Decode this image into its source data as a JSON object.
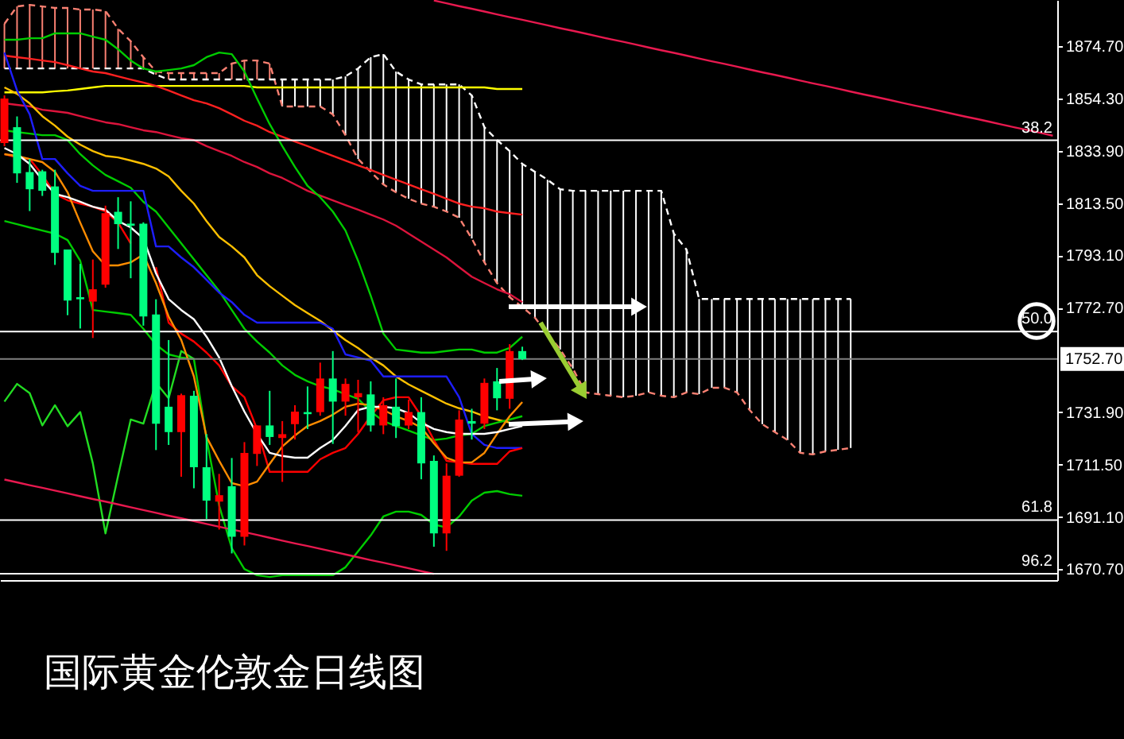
{
  "chart_data": {
    "type": "candlestick",
    "title": "国际黄金伦敦金日线图",
    "categories": [
      null,
      null,
      null,
      null,
      null,
      null,
      null,
      null,
      null,
      null,
      null,
      null,
      null,
      null,
      null,
      null,
      null,
      null,
      null,
      null,
      null,
      null,
      null,
      null,
      null,
      null,
      null,
      null,
      null,
      null,
      null,
      null,
      null,
      null,
      null,
      null,
      null,
      null,
      null,
      null,
      null,
      null,
      null,
      null,
      null,
      null,
      null,
      null,
      null,
      null,
      null,
      null,
      null,
      null,
      null,
      null,
      null,
      null,
      null,
      null,
      null,
      null,
      null,
      null,
      null,
      null,
      null,
      null,
      null,
      null,
      null,
      null,
      null,
      null,
      null,
      null,
      null,
      null,
      null,
      null,
      null,
      null,
      null,
      null
    ],
    "ohlc": [
      [
        1836.9,
        1855.5,
        1835.7,
        1854.3
      ],
      [
        1843.1,
        1847.3,
        1821.4,
        1825.1
      ],
      [
        1825.6,
        1830.7,
        1810.4,
        1818.9
      ],
      [
        1825.9,
        1826.5,
        1816.3,
        1818.3
      ],
      [
        1820.0,
        1826.5,
        1789.4,
        1794.1
      ],
      [
        1795.4,
        1795.4,
        1769.8,
        1775.5
      ],
      [
        1776.8,
        1789.8,
        1764.6,
        1776.0
      ],
      [
        1775.1,
        1791.5,
        1760.9,
        1779.9
      ],
      [
        1781.7,
        1812.5,
        1780.5,
        1809.6
      ],
      [
        1810.1,
        1815.8,
        1795.6,
        1805.3
      ],
      [
        1805.5,
        1814.2,
        1784.2,
        1804.7
      ],
      [
        1805.5,
        1806.0,
        1765.7,
        1769.3
      ],
      [
        1770.1,
        1776.0,
        1717.2,
        1727.5
      ],
      [
        1734.1,
        1760.1,
        1719.2,
        1724.2
      ],
      [
        1724.2,
        1739.2,
        1706.8,
        1738.6
      ],
      [
        1738.4,
        1740.3,
        1702.3,
        1710.5
      ],
      [
        1710.5,
        1723.4,
        1690.3,
        1697.5
      ],
      [
        1697.1,
        1707.9,
        1686.2,
        1699.6
      ],
      [
        1703.1,
        1714.1,
        1676.9,
        1683.4
      ],
      [
        1683.4,
        1720.3,
        1680.0,
        1716.1
      ],
      [
        1715.7,
        1726.8,
        1711.0,
        1726.8
      ],
      [
        1726.8,
        1740.3,
        1719.2,
        1722.3
      ],
      [
        1721.9,
        1728.5,
        1704.8,
        1723.4
      ],
      [
        1727.3,
        1734.7,
        1721.3,
        1732.2
      ],
      [
        1732.0,
        1742.0,
        1725.4,
        1731.2
      ],
      [
        1732.0,
        1751.3,
        1730.6,
        1745.1
      ],
      [
        1745.1,
        1755.8,
        1719.6,
        1736.1
      ],
      [
        1736.1,
        1745.1,
        1730.6,
        1743.0
      ],
      [
        1737.8,
        1744.6,
        1724.2,
        1739.4
      ],
      [
        1738.9,
        1744.0,
        1724.4,
        1726.8
      ],
      [
        1726.8,
        1737.8,
        1723.4,
        1734.7
      ],
      [
        1734.1,
        1745.1,
        1721.9,
        1726.5
      ],
      [
        1726.8,
        1736.8,
        1725.4,
        1732.0
      ],
      [
        1732.0,
        1737.8,
        1705.8,
        1712.0
      ],
      [
        1713.0,
        1715.1,
        1679.5,
        1684.7
      ],
      [
        1684.7,
        1712.0,
        1677.9,
        1707.2
      ],
      [
        1707.2,
        1732.7,
        1706.8,
        1729.1
      ],
      [
        1728.5,
        1733.3,
        1721.3,
        1727.5
      ],
      [
        1727.5,
        1745.1,
        1725.4,
        1743.4
      ],
      [
        1744.0,
        1749.2,
        1732.7,
        1737.4
      ],
      [
        1737.2,
        1758.5,
        1733.3,
        1755.8
      ],
      [
        1755.8,
        1757.5,
        1752.3,
        1752.7
      ],
      null,
      null,
      null,
      null,
      null,
      null,
      null,
      null,
      null,
      null,
      null,
      null,
      null,
      null,
      null,
      null,
      null,
      null,
      null,
      null,
      null,
      null,
      null,
      null,
      null,
      null,
      null,
      null,
      null,
      null,
      null,
      null,
      null,
      null,
      null,
      null,
      null,
      null,
      null,
      null,
      null,
      null
    ],
    "colors": [
      "#ff0000",
      "#00ff80",
      "#00ff80",
      "#00ff80",
      "#00ff80",
      "#00ff80",
      "#00ff80",
      "#ff0000",
      "#ff0000",
      "#00ff80",
      "#00ff80",
      "#00ff80",
      "#00ff80",
      "#00ff80",
      "#ff0000",
      "#00ff80",
      "#00ff80",
      "#ff0000",
      "#00ff80",
      "#ff0000",
      "#ff0000",
      "#00ff80",
      "#ff0000",
      "#ff0000",
      "#00ff80",
      "#ff0000",
      "#00ff80",
      "#ff0000",
      "#ff0000",
      "#00ff80",
      "#ff0000",
      "#00ff80",
      "#ff0000",
      "#00ff80",
      "#00ff80",
      "#ff0000",
      "#ff0000",
      "#00ff80",
      "#ff0000",
      "#00ff80",
      "#ff0000",
      "#00ff80",
      null,
      null,
      null,
      null,
      null,
      null,
      null,
      null,
      null,
      null,
      null,
      null,
      null,
      null,
      null,
      null,
      null,
      null,
      null,
      null,
      null,
      null,
      null,
      null,
      null,
      null,
      null,
      null,
      null,
      null,
      null,
      null,
      null,
      null,
      null,
      null,
      null,
      null,
      null,
      null,
      null,
      null
    ],
    "series": [
      {
        "type": "bar",
        "base": [
          1866.0,
          1866.0,
          1866.0,
          1866.0,
          1866.0,
          1866.0,
          1866.0,
          1866.0,
          1866.0,
          1866.0,
          1866.0,
          1866.0,
          1863.6,
          1861.7,
          1861.7,
          1861.7,
          1861.7,
          1861.7,
          1861.7,
          1861.7,
          1861.7,
          1861.7,
          1851.2,
          1851.2,
          1851.2,
          1851.2,
          1848.1,
          1840.0,
          1830.7,
          1825.7,
          1820.8,
          1817.7,
          1815.2,
          1813.3,
          1812.1,
          1810.2,
          1807.8,
          1799.7,
          1790.4,
          1782.3,
          1776.8,
          1773.0,
          1768.8,
          1762.6,
          1756.4,
          1749.0,
          1739.7,
          1739.0,
          1738.4,
          1737.8,
          1738.4,
          1739.7,
          1738.4,
          1737.8,
          1739.7,
          1739.0,
          1741.5,
          1741.5,
          1739.7,
          1732.8,
          1727.3,
          1724.2,
          1721.1,
          1716.1,
          1715.5,
          1716.7,
          1717.3,
          1718.0,
          null,
          null,
          null,
          null,
          null,
          null,
          null,
          null,
          null,
          null,
          null,
          null,
          null,
          null,
          null,
          null
        ],
        "values": [
          17.4,
          24.2,
          24.8,
          24.2,
          23.6,
          23.6,
          23.0,
          23.0,
          22.4,
          15.5,
          10.6,
          4.4,
          1.2,
          2.5,
          2.5,
          2.5,
          2.5,
          2.5,
          6.2,
          7.4,
          7.4,
          6.2,
          10.5,
          10.5,
          10.5,
          10.5,
          13.6,
          22.9,
          35.3,
          44.7,
          50.8,
          47.1,
          46.5,
          46.5,
          47.7,
          49.6,
          52.0,
          55.8,
          52.7,
          55.8,
          57.0,
          55.8,
          56.9,
          60.0,
          62.5,
          69.3,
          78.6,
          79.3,
          79.9,
          80.5,
          79.9,
          78.6,
          79.9,
          63.8,
          55.7,
          37.1,
          34.6,
          34.6,
          36.4,
          43.3,
          48.8,
          51.9,
          55.0,
          60.0,
          60.6,
          59.4,
          58.8,
          58.1,
          null,
          null,
          null,
          null,
          null,
          null,
          null,
          null,
          null,
          null,
          null,
          null,
          null,
          null,
          null,
          null
        ],
        "colors": [
          "#fa8072",
          "#fa8072",
          "#fa8072",
          "#fa8072",
          "#fa8072",
          "#fa8072",
          "#fa8072",
          "#fa8072",
          "#fa8072",
          "#fa8072",
          "#fa8072",
          "#fa8072",
          "#fa8072",
          "#fa8072",
          "#fa8072",
          "#fa8072",
          "#fa8072",
          "#fa8072",
          "#fa8072",
          "#fa8072",
          "#fa8072",
          "#fa8072",
          "#ffffff",
          "#ffffff",
          "#ffffff",
          "#ffffff",
          "#ffffff",
          "#ffffff",
          "#ffffff",
          "#ffffff",
          "#ffffff",
          "#ffffff",
          "#ffffff",
          "#ffffff",
          "#ffffff",
          "#ffffff",
          "#ffffff",
          "#ffffff",
          "#ffffff",
          "#ffffff",
          "#ffffff",
          "#ffffff",
          "#ffffff",
          "#ffffff",
          "#ffffff",
          "#ffffff",
          "#ffffff",
          "#ffffff",
          "#ffffff",
          "#ffffff",
          "#ffffff",
          "#ffffff",
          "#ffffff",
          "#ffffff",
          "#ffffff",
          "#ffffff",
          "#ffffff",
          "#ffffff",
          "#ffffff",
          "#ffffff",
          "#ffffff",
          "#ffffff",
          "#ffffff",
          "#ffffff",
          "#ffffff",
          "#ffffff",
          "#ffffff",
          "#ffffff",
          null,
          null,
          null,
          null,
          null,
          null,
          null,
          null,
          null,
          null,
          null,
          null,
          null,
          null,
          null,
          null
        ]
      },
      {
        "type": "line",
        "color": "#fa8072",
        "line_style": "dashed",
        "values": [
          1883.4,
          1890.2,
          1890.8,
          1890.2,
          1889.6,
          1889.6,
          1889.0,
          1889.0,
          1888.4,
          1881.5,
          1876.6,
          1870.4,
          1864.8,
          1864.2,
          1864.2,
          1864.2,
          1864.2,
          1864.2,
          1867.9,
          1869.1,
          1869.1,
          1867.9,
          1851.2,
          1851.2,
          1851.2,
          1851.2,
          1848.1,
          1840.0,
          1830.7,
          1825.7,
          1820.8,
          1817.7,
          1815.2,
          1813.3,
          1812.1,
          1810.2,
          1807.8,
          1799.7,
          1790.4,
          1782.3,
          1776.8,
          1773.0,
          1768.8,
          1762.6,
          1756.4,
          1749.0,
          1739.7,
          1739.0,
          1738.4,
          1737.8,
          1738.4,
          1739.7,
          1738.4,
          1737.8,
          1739.7,
          1739.0,
          1741.5,
          1741.5,
          1739.7,
          1732.8,
          1727.3,
          1724.2,
          1721.1,
          1716.1,
          1715.5,
          1716.7,
          1717.3,
          1718.0,
          null,
          null,
          null,
          null,
          null,
          null,
          null,
          null,
          null,
          null,
          null,
          null,
          null,
          null,
          null,
          null
        ]
      },
      {
        "type": "line",
        "color": "#ffffff",
        "line_style": "dashed",
        "values": [
          1866.0,
          1866.0,
          1866.0,
          1866.0,
          1866.0,
          1866.0,
          1866.0,
          1866.0,
          1866.0,
          1866.0,
          1866.0,
          1866.0,
          1863.6,
          1861.7,
          1861.7,
          1861.7,
          1861.7,
          1861.7,
          1861.7,
          1861.7,
          1861.7,
          1861.7,
          1861.7,
          1861.7,
          1861.7,
          1861.7,
          1861.7,
          1862.9,
          1866.0,
          1870.4,
          1871.6,
          1864.8,
          1861.7,
          1859.8,
          1859.8,
          1859.8,
          1859.8,
          1855.5,
          1843.1,
          1838.1,
          1833.8,
          1828.8,
          1825.7,
          1822.6,
          1818.9,
          1818.3,
          1818.3,
          1818.3,
          1818.3,
          1818.3,
          1818.3,
          1818.3,
          1818.3,
          1801.6,
          1795.4,
          1776.1,
          1776.1,
          1776.1,
          1776.1,
          1776.1,
          1776.1,
          1776.1,
          1776.1,
          1776.1,
          1776.1,
          1776.1,
          1776.1,
          1776.1,
          null,
          null,
          null,
          null,
          null,
          null,
          null,
          null,
          null,
          null,
          null,
          null,
          null,
          null,
          null,
          null
        ]
      },
      {
        "type": "line",
        "color": "#ffff00",
        "values": [
          1856.7,
          1856.7,
          1856.7,
          1856.7,
          1857.1,
          1857.4,
          1858.0,
          1858.6,
          1859.2,
          1859.2,
          1859.2,
          1859.2,
          1859.2,
          1859.2,
          1859.2,
          1859.2,
          1859.2,
          1859.2,
          1859.2,
          1859.2,
          1858.6,
          1858.6,
          1858.6,
          1858.6,
          1858.6,
          1858.6,
          1858.6,
          1858.6,
          1858.6,
          1858.6,
          1858.6,
          1858.6,
          1858.6,
          1858.6,
          1858.6,
          1858.6,
          1858.6,
          1858.6,
          1858.6,
          1858.0,
          1858.0,
          1858.0,
          null,
          null,
          null,
          null,
          null,
          null,
          null,
          null,
          null,
          null,
          null,
          null,
          null,
          null,
          null,
          null,
          null,
          null,
          null,
          null,
          null,
          null,
          null,
          null,
          null,
          null,
          null,
          null,
          null,
          null,
          null,
          null,
          null,
          null,
          null,
          null,
          null,
          null,
          null,
          null,
          null,
          null
        ]
      },
      {
        "type": "line",
        "color": "#ff2020",
        "values": [
          1871.0,
          1870.4,
          1869.8,
          1869.1,
          1868.5,
          1867.3,
          1866.0,
          1864.8,
          1864.2,
          1862.9,
          1861.7,
          1860.5,
          1859.2,
          1857.4,
          1855.5,
          1853.6,
          1852.4,
          1850.5,
          1848.1,
          1845.6,
          1843.7,
          1841.2,
          1839.4,
          1837.5,
          1835.7,
          1833.8,
          1831.9,
          1830.1,
          1828.2,
          1826.4,
          1824.5,
          1822.6,
          1820.8,
          1818.9,
          1817.1,
          1815.2,
          1813.3,
          1812.1,
          1811.5,
          1810.2,
          1809.6,
          1809.0,
          null,
          null,
          null,
          null,
          null,
          null,
          null,
          null,
          null,
          null,
          null,
          null,
          null,
          null,
          null,
          null,
          null,
          null,
          null,
          null,
          null,
          null,
          null,
          null,
          null,
          null,
          null,
          null,
          null,
          null,
          null,
          null,
          null,
          null,
          null,
          null,
          null,
          null,
          null,
          null,
          null,
          null
        ]
      },
      {
        "type": "line",
        "color": "#dc143c",
        "values": [
          1852.4,
          1851.8,
          1851.2,
          1849.9,
          1849.3,
          1848.7,
          1847.4,
          1846.2,
          1845.0,
          1844.3,
          1843.1,
          1841.9,
          1841.2,
          1840.0,
          1838.8,
          1838.1,
          1835.7,
          1833.8,
          1831.9,
          1829.5,
          1827.6,
          1825.1,
          1823.3,
          1820.8,
          1818.3,
          1816.4,
          1814.6,
          1812.7,
          1810.9,
          1809.0,
          1807.1,
          1804.7,
          1801.6,
          1798.5,
          1795.4,
          1792.3,
          1788.5,
          1784.8,
          1782.3,
          1779.9,
          1778.0,
          1774.9,
          null,
          null,
          null,
          null,
          null,
          null,
          null,
          null,
          null,
          null,
          null,
          null,
          null,
          null,
          null,
          null,
          null,
          null,
          null,
          null,
          null,
          null,
          null,
          null,
          null,
          null,
          null,
          null,
          null,
          null,
          null,
          null,
          null,
          null,
          null,
          null,
          null,
          null,
          null,
          null,
          null,
          null
        ]
      },
      {
        "type": "line",
        "color": "#ffc000",
        "values": [
          1858.6,
          1856.1,
          1852.4,
          1847.4,
          1843.7,
          1839.4,
          1836.3,
          1833.8,
          1831.9,
          1831.3,
          1830.1,
          1828.8,
          1827.0,
          1823.9,
          1818.3,
          1813.3,
          1806.5,
          1800.3,
          1796.6,
          1792.3,
          1785.4,
          1781.1,
          1777.4,
          1773.7,
          1770.6,
          1767.6,
          1763.8,
          1760.1,
          1757.0,
          1753.3,
          1750.2,
          1745.9,
          1742.8,
          1740.3,
          1737.8,
          1735.3,
          1733.5,
          1732.2,
          1730.4,
          1729.1,
          1727.9,
          1726.6,
          null,
          null,
          null,
          null,
          null,
          null,
          null,
          null,
          null,
          null,
          null,
          null,
          null,
          null,
          null,
          null,
          null,
          null,
          null,
          null,
          null,
          null,
          null,
          null,
          null,
          null,
          null,
          null,
          null,
          null,
          null,
          null,
          null,
          null,
          null,
          null,
          null,
          null,
          null,
          null,
          null,
          null
        ]
      },
      {
        "type": "line",
        "color": "#00cc00",
        "values": [
          1877.2,
          1877.2,
          1877.8,
          1877.8,
          1879.7,
          1879.7,
          1879.7,
          1878.4,
          1877.2,
          1873.5,
          1869.1,
          1866.0,
          1864.8,
          1865.4,
          1866.0,
          1867.3,
          1870.4,
          1872.2,
          1871.6,
          1864.8,
          1854.3,
          1844.3,
          1835.7,
          1827.6,
          1820.2,
          1815.8,
          1810.2,
          1802.8,
          1791.0,
          1777.4,
          1762.6,
          1756.4,
          1755.8,
          1755.2,
          1755.2,
          1755.8,
          1756.4,
          1756.4,
          1755.2,
          1755.2,
          1757.0,
          1761.4,
          null,
          null,
          null,
          null,
          null,
          null,
          null,
          null,
          null,
          null,
          null,
          null,
          null,
          null,
          null,
          null,
          null,
          null,
          null,
          null,
          null,
          null,
          null,
          null,
          null,
          null,
          null,
          null,
          null,
          null,
          null,
          null,
          null,
          null,
          null,
          null,
          null,
          null,
          null,
          null,
          null,
          null
        ]
      },
      {
        "type": "line",
        "color": "#00cc00",
        "values": [
          1841.9,
          1841.2,
          1840.6,
          1840.0,
          1840.0,
          1838.1,
          1832.6,
          1828.2,
          1824.5,
          1822.0,
          1819.5,
          1814.0,
          1810.2,
          1804.0,
          1797.8,
          1791.6,
          1785.4,
          1779.2,
          1771.8,
          1764.5,
          1759.5,
          1755.2,
          1750.2,
          1746.5,
          1744.0,
          1742.1,
          1740.9,
          1739.0,
          1737.2,
          1732.2,
          1728.5,
          1726.6,
          1724.8,
          1722.9,
          1721.1,
          1721.7,
          1722.9,
          1723.5,
          1726.6,
          1727.9,
          1729.1,
          1730.4,
          null,
          null,
          null,
          null,
          null,
          null,
          null,
          null,
          null,
          null,
          null,
          null,
          null,
          null,
          null,
          null,
          null,
          null,
          null,
          null,
          null,
          null,
          null,
          null,
          null,
          null,
          null,
          null,
          null,
          null,
          null,
          null,
          null,
          null,
          null,
          null,
          null,
          null,
          null,
          null,
          null,
          null
        ]
      },
      {
        "type": "line",
        "color": "#00cc00",
        "values": [
          1806.5,
          1805.3,
          1804.0,
          1802.8,
          1801.6,
          1799.1,
          1791.0,
          1771.8,
          1771.2,
          1770.6,
          1769.9,
          1764.5,
          1758.3,
          1754.5,
          1753.3,
          1752.7,
          1721.7,
          1695.6,
          1678.9,
          1670.8,
          1668.4,
          1667.7,
          1668.4,
          1668.4,
          1668.4,
          1668.4,
          1668.4,
          1671.5,
          1677.7,
          1683.9,
          1691.3,
          1693.2,
          1693.2,
          1691.9,
          1688.2,
          1687.0,
          1691.3,
          1697.5,
          1700.6,
          1701.2,
          1700.0,
          1699.4,
          null,
          null,
          null,
          null,
          null,
          null,
          null,
          null,
          null,
          null,
          null,
          null,
          null,
          null,
          null,
          null,
          null,
          null,
          null,
          null,
          null,
          null,
          null,
          null,
          null,
          null,
          null,
          null,
          null,
          null,
          null,
          null,
          null,
          null,
          null,
          null,
          null,
          null,
          null,
          null,
          null,
          null
        ]
      },
      {
        "type": "line",
        "color": "#22dd22",
        "values": [
          1736.1,
          1743.0,
          1739.4,
          1726.8,
          1734.7,
          1726.5,
          1732.0,
          1712.0,
          1684.7,
          1707.2,
          1729.1,
          1727.5,
          1743.4,
          1737.4,
          1755.8,
          1752.7,
          null,
          null,
          null,
          null,
          null,
          null,
          null,
          null,
          null,
          null,
          null,
          null,
          null,
          null,
          null,
          null,
          null,
          null,
          null,
          null,
          null,
          null,
          null,
          null,
          null,
          null,
          null,
          null,
          null,
          null,
          null,
          null,
          null,
          null,
          null,
          null,
          null,
          null,
          null,
          null,
          null,
          null,
          null,
          null,
          null,
          null,
          null,
          null,
          null,
          null,
          null,
          null,
          null,
          null,
          null,
          null,
          null,
          null,
          null,
          null,
          null,
          null,
          null,
          null,
          null,
          null,
          null,
          null
        ]
      },
      {
        "type": "line",
        "color": "#1e1eff",
        "values": [
          1872.2,
          1857.4,
          1848.1,
          1830.7,
          1830.7,
          1825.1,
          1820.2,
          1818.3,
          1818.3,
          1818.3,
          1818.3,
          1818.3,
          1796.6,
          1796.6,
          1792.3,
          1788.5,
          1783.6,
          1778.6,
          1774.9,
          1769.9,
          1766.9,
          1766.9,
          1766.9,
          1766.9,
          1766.9,
          1766.9,
          1764.5,
          1754.5,
          1753.3,
          1752.1,
          1745.9,
          1745.9,
          1745.9,
          1745.9,
          1745.9,
          1745.9,
          1737.8,
          1723.5,
          1719.2,
          1718.0,
          1718.0,
          1718.0,
          null,
          null,
          null,
          null,
          null,
          null,
          null,
          null,
          null,
          null,
          null,
          null,
          null,
          null,
          null,
          null,
          null,
          null,
          null,
          null,
          null,
          null,
          null,
          null,
          null,
          null,
          null,
          null,
          null,
          null,
          null,
          null,
          null,
          null,
          null,
          null,
          null,
          null,
          null,
          null,
          null,
          null
        ]
      },
      {
        "type": "line",
        "color": "#ff0000",
        "values": [
          1832.6,
          1831.3,
          1830.7,
          1824.5,
          1817.1,
          1814.6,
          1813.3,
          1812.1,
          1810.2,
          1805.9,
          1797.8,
          null,
          1788.5,
          1766.9,
          1762.6,
          1759.5,
          1755.2,
          1750.2,
          1742.1,
          1737.8,
          1725.4,
          1708.7,
          1708.7,
          1708.7,
          1708.7,
          1713.6,
          1716.1,
          1718.0,
          1723.5,
          1730.4,
          1736.6,
          1737.8,
          1737.8,
          1730.4,
          1721.1,
          1713.0,
          1712.4,
          1711.8,
          1711.8,
          1711.8,
          1716.7,
          1718.0,
          null,
          null,
          null,
          null,
          null,
          null,
          null,
          null,
          null,
          null,
          null,
          null,
          null,
          null,
          null,
          null,
          null,
          null,
          null,
          null,
          null,
          null,
          null,
          null,
          null,
          null,
          null,
          null,
          null,
          null,
          null,
          null,
          null,
          null,
          null,
          null,
          null,
          null,
          null,
          null,
          null,
          null
        ]
      },
      {
        "type": "line",
        "color": "#ff8c00",
        "values": [
          1832.6,
          1831.9,
          1830.7,
          1829.5,
          1825.7,
          1817.7,
          1805.9,
          1794.7,
          1789.2,
          1789.2,
          1790.4,
          1793.5,
          1782.3,
          1769.3,
          1760.1,
          1745.9,
          1722.3,
          1713.0,
          1704.3,
          1703.1,
          1704.9,
          1711.8,
          1718.6,
          1722.9,
          1726.6,
          1728.5,
          1731.0,
          1734.1,
          1735.3,
          1734.7,
          1732.8,
          1730.4,
          1728.5,
          1726.0,
          1719.8,
          1714.2,
          1712.4,
          1712.4,
          1716.1,
          1723.5,
          1730.4,
          1735.9,
          null,
          null,
          null,
          null,
          null,
          null,
          null,
          null,
          null,
          null,
          null,
          null,
          null,
          null,
          null,
          null,
          null,
          null,
          null,
          null,
          null,
          null,
          null,
          null,
          null,
          null,
          null,
          null,
          null,
          null,
          null,
          null,
          null,
          null,
          null,
          null,
          null,
          null,
          null,
          null,
          null,
          null
        ]
      },
      {
        "type": "line",
        "color": "#ffffff",
        "values": [
          1835.0,
          1832.6,
          1828.8,
          1822.6,
          1817.1,
          1815.8,
          1814.0,
          1812.1,
          1810.9,
          1806.5,
          1804.0,
          1799.7,
          1786.1,
          1776.1,
          1771.8,
          1768.2,
          1761.4,
          1753.3,
          1742.1,
          1732.2,
          1723.5,
          1716.1,
          1714.9,
          1714.2,
          1714.2,
          1718.0,
          1721.1,
          1726.6,
          1732.8,
          1734.1,
          1734.1,
          1733.5,
          1731.6,
          1727.9,
          1725.4,
          1724.2,
          1723.5,
          1723.5,
          1723.5,
          1724.2,
          1725.4,
          1726.6,
          null,
          null,
          null,
          null,
          null,
          null,
          null,
          null,
          null,
          null,
          null,
          null,
          null,
          null,
          null,
          null,
          null,
          null,
          null,
          null,
          null,
          null,
          null,
          null,
          null,
          null,
          null,
          null,
          null,
          null,
          null,
          null,
          null,
          null,
          null,
          null,
          null,
          null,
          null,
          null,
          null,
          null
        ]
      },
      {
        "type": "line",
        "color": "#e8194f",
        "values": [
          null,
          null,
          null,
          null,
          null,
          null,
          null,
          null,
          null,
          null,
          null,
          null,
          null,
          null,
          null,
          null,
          null,
          null,
          null,
          null,
          null,
          null,
          null,
          null,
          null,
          null,
          null,
          null,
          null,
          null,
          null,
          null,
          null,
          null,
          1892.5,
          1891.4,
          1890.3,
          1889.3,
          1888.2,
          1887.1,
          1886.0,
          1885.0,
          1883.9,
          1882.8,
          1881.7,
          1880.7,
          1879.6,
          1878.5,
          1877.4,
          1876.4,
          1875.3,
          1874.2,
          1873.1,
          1872.1,
          1871.0,
          1869.9,
          1868.8,
          1867.8,
          1866.7,
          1865.6,
          1864.5,
          1863.5,
          1862.4,
          1861.3,
          1860.2,
          1859.2,
          1858.1,
          1857.0,
          1855.9,
          1854.9,
          1853.8,
          1852.7,
          1851.6,
          1850.6,
          1849.5,
          1848.4,
          1847.3,
          1846.3,
          1845.2,
          1844.1,
          1843.0,
          1842.0,
          1840.9,
          1839.8
        ]
      },
      {
        "type": "line",
        "color": "#e8194f",
        "values": [
          1705.7,
          1704.6,
          1703.5,
          1702.5,
          1701.4,
          1700.3,
          1699.2,
          1698.1,
          1697.1,
          1696.0,
          1694.9,
          1693.8,
          1692.7,
          1691.6,
          1690.6,
          1689.5,
          1688.4,
          1687.3,
          1686.2,
          1685.2,
          1684.1,
          1683.0,
          1681.9,
          1680.8,
          1679.8,
          1678.7,
          1677.6,
          1676.5,
          1675.4,
          1674.3,
          1673.3,
          1672.2,
          1671.1,
          1670.0,
          1668.9,
          null,
          null,
          null,
          null,
          null,
          null,
          null,
          null,
          null,
          null,
          null,
          null,
          null,
          null,
          null,
          null,
          null,
          null,
          null,
          null,
          null,
          null,
          null,
          null,
          null,
          null,
          null,
          null,
          null,
          null,
          null,
          null,
          null,
          null,
          null,
          null,
          null,
          null,
          null,
          null,
          null,
          null,
          null,
          null,
          null,
          null,
          null,
          null,
          null
        ]
      }
    ],
    "ylim": [
      1666.5,
      1892.7
    ],
    "yticks": [
      {
        "value": 1874.7,
        "label": "1874.70"
      },
      {
        "value": 1854.3,
        "label": "1854.30"
      },
      {
        "value": 1833.9,
        "label": "1833.90"
      },
      {
        "value": 1813.5,
        "label": "1813.50"
      },
      {
        "value": 1793.1,
        "label": "1793.10"
      },
      {
        "value": 1772.7,
        "label": "1772.70"
      },
      {
        "value": 1731.9,
        "label": "1731.90"
      },
      {
        "value": 1711.5,
        "label": "1711.50"
      },
      {
        "value": 1691.1,
        "label": "1691.10"
      },
      {
        "value": 1670.7,
        "label": "1670.70"
      }
    ],
    "ref_lines": [
      {
        "axis": "y",
        "value": 1838.0
      },
      {
        "axis": "y",
        "value": 1763.4
      },
      {
        "axis": "y",
        "value": 1689.9
      },
      {
        "axis": "y",
        "value": 1669.0
      },
      {
        "axis": "y",
        "value": 1752.7,
        "label": "1752.70",
        "color": "#808080"
      }
    ],
    "annotations": [
      {
        "text": "38.2",
        "y": 1838.0
      },
      {
        "text": "50.0",
        "y": 1763.4
      },
      {
        "text": "61.8",
        "y": 1689.9
      },
      {
        "text": "96.2",
        "y": 1669.0
      }
    ],
    "tick_labels": "y"
  }
}
